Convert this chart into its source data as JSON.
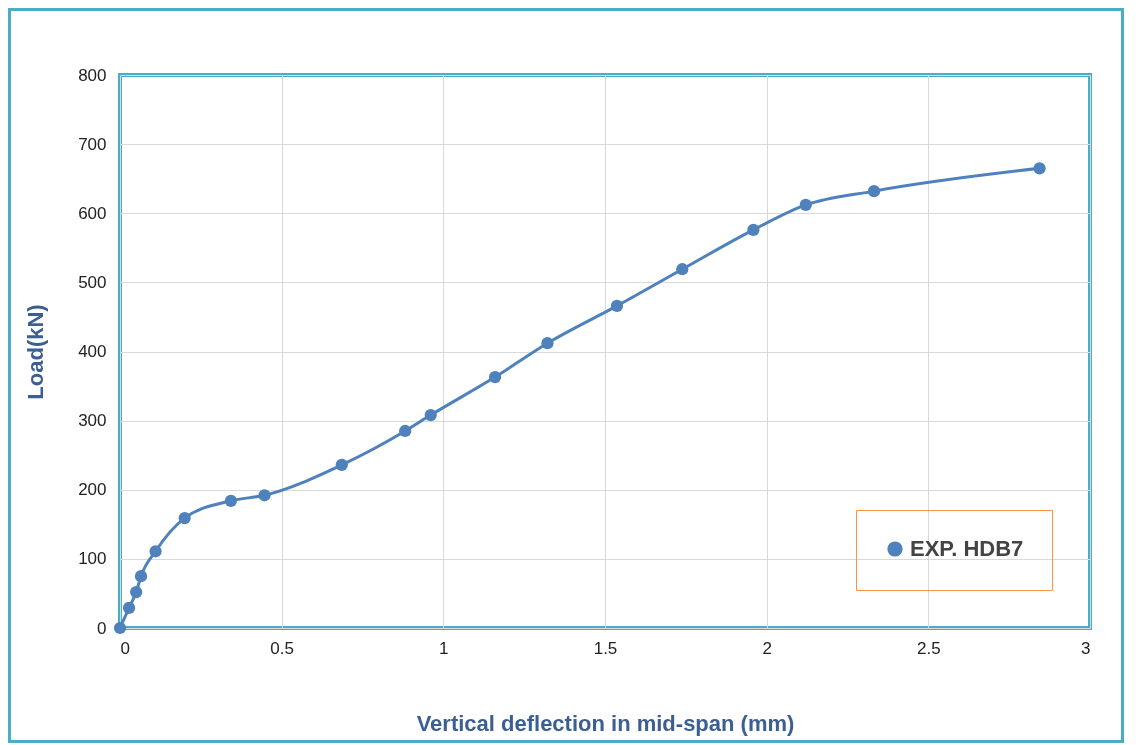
{
  "chart_data": {
    "type": "line",
    "xlabel": "Vertical deflection in mid-span (mm)",
    "ylabel": "Load(kN)",
    "x": [
      0,
      0.028,
      0.05,
      0.065,
      0.11,
      0.2,
      0.343,
      0.447,
      0.686,
      0.882,
      0.961,
      1.16,
      1.322,
      1.537,
      1.739,
      1.959,
      2.121,
      2.332,
      2.844
    ],
    "series": [
      {
        "name": "EXP. HDB7",
        "color": "#4f81bd",
        "values": [
          0,
          29,
          52,
          75,
          111,
          159,
          184,
          192,
          236,
          285,
          308,
          363,
          412,
          466,
          519,
          576,
          612,
          632,
          665
        ]
      }
    ],
    "xlim": [
      0,
      3
    ],
    "xticks": [
      0,
      0.5,
      1,
      1.5,
      2,
      2.5,
      3
    ],
    "ylim": [
      0,
      800
    ],
    "yticks": [
      0,
      100,
      200,
      300,
      400,
      500,
      600,
      700,
      800
    ],
    "grid": true,
    "legend": "bottom right",
    "marker": "circle",
    "line_style": "solid"
  }
}
